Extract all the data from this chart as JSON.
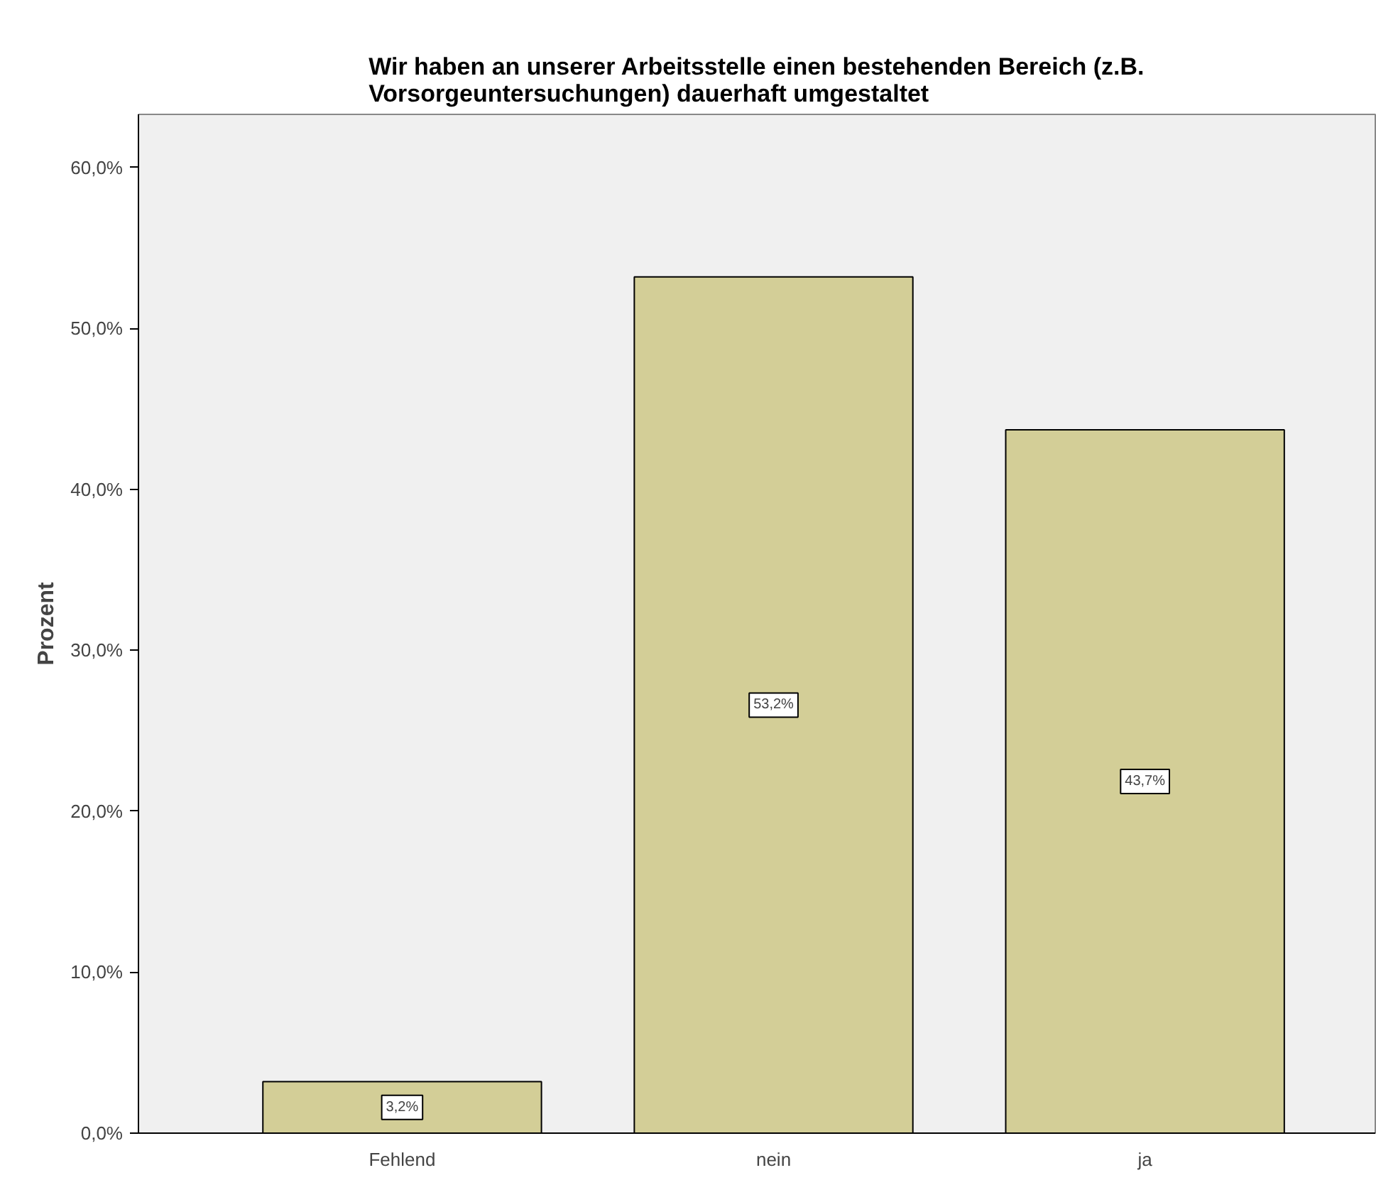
{
  "chart_data": {
    "type": "bar",
    "title": "Wir haben an unserer Arbeitsstelle einen bestehenden Bereich (z.B. Vorsorgeuntersuchungen) dauerhaft umgestaltet",
    "ylabel": "Prozent",
    "categories": [
      "Fehlend",
      "nein",
      "ja"
    ],
    "values": [
      3.2,
      53.2,
      43.7
    ],
    "value_labels": [
      "3,2%",
      "53,2%",
      "43,7%"
    ],
    "color": "#d3ce97",
    "ylim": [
      0,
      63.3
    ],
    "yticks": [
      {
        "value": 0,
        "label": "0,0%"
      },
      {
        "value": 10,
        "label": "10,0%"
      },
      {
        "value": 20,
        "label": "20,0%"
      },
      {
        "value": 30,
        "label": "30,0%"
      },
      {
        "value": 40,
        "label": "40,0%"
      },
      {
        "value": 50,
        "label": "50,0%"
      },
      {
        "value": 60,
        "label": "60,0%"
      }
    ],
    "grid": false
  }
}
